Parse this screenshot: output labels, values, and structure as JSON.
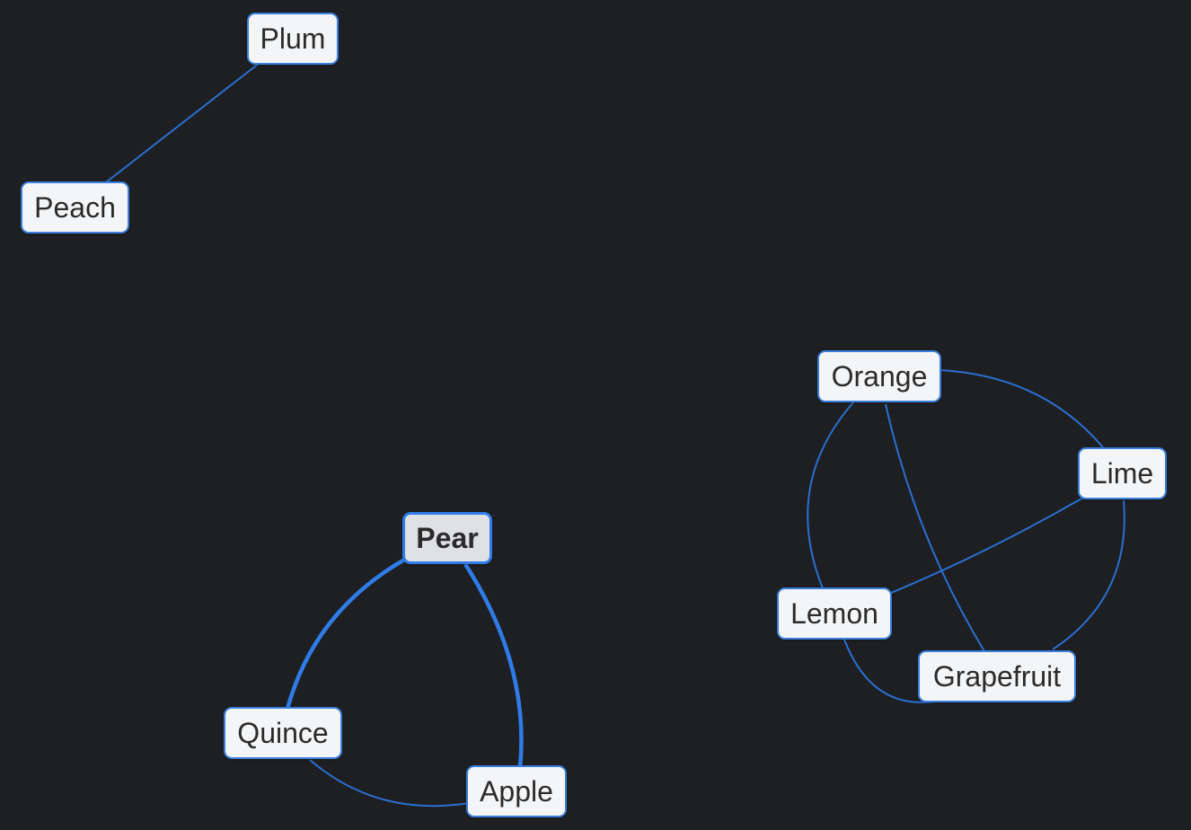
{
  "accent_color": "#2f7ce8",
  "background_color": "#1d1f22",
  "nodes": {
    "plum": "Plum",
    "peach": "Peach",
    "pear": "Pear",
    "quince": "Quince",
    "apple": "Apple",
    "orange": "Orange",
    "lime": "Lime",
    "lemon": "Lemon",
    "grapefruit": "Grapefruit"
  },
  "selected_node": "pear",
  "edges": [
    {
      "from": "plum",
      "to": "peach"
    },
    {
      "from": "pear",
      "to": "quince"
    },
    {
      "from": "pear",
      "to": "apple"
    },
    {
      "from": "quince",
      "to": "apple"
    },
    {
      "from": "orange",
      "to": "lime"
    },
    {
      "from": "orange",
      "to": "lemon"
    },
    {
      "from": "orange",
      "to": "grapefruit"
    },
    {
      "from": "lime",
      "to": "lemon"
    },
    {
      "from": "lime",
      "to": "grapefruit"
    },
    {
      "from": "lemon",
      "to": "grapefruit"
    }
  ]
}
